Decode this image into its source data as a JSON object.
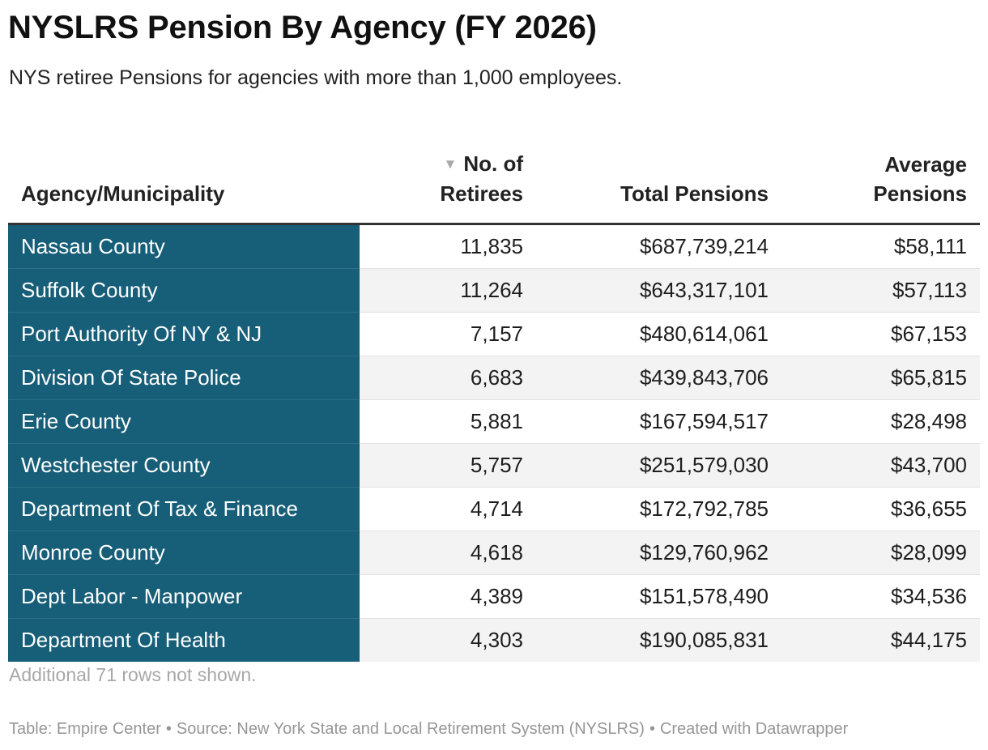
{
  "title": "NYSLRS Pension By Agency (FY 2026)",
  "subtitle": "NYS retiree Pensions for agencies with more than 1,000 employees.",
  "colors": {
    "agency_column_bg": "#175e78",
    "agency_column_text": "#ffffff",
    "stripe": "#f3f3f3",
    "note_text": "#a7a7a7"
  },
  "table": {
    "headers": {
      "agency": "Agency/Municipality",
      "retirees_line1": "No. of",
      "retirees_line2": "Retirees",
      "total": "Total Pensions",
      "average_line1": "Average",
      "average_line2": "Pensions"
    },
    "sort_indicator": {
      "icon": "sort-descending-icon",
      "glyph": "▼",
      "column": "No. of Retirees",
      "direction": "descending"
    },
    "rows": [
      {
        "agency": "Nassau County",
        "retirees": "11,835",
        "total": "$687,739,214",
        "average": "$58,111"
      },
      {
        "agency": "Suffolk County",
        "retirees": "11,264",
        "total": "$643,317,101",
        "average": "$57,113"
      },
      {
        "agency": "Port Authority Of NY & NJ",
        "retirees": "7,157",
        "total": "$480,614,061",
        "average": "$67,153"
      },
      {
        "agency": "Division Of State Police",
        "retirees": "6,683",
        "total": "$439,843,706",
        "average": "$65,815"
      },
      {
        "agency": "Erie County",
        "retirees": "5,881",
        "total": "$167,594,517",
        "average": "$28,498"
      },
      {
        "agency": "Westchester County",
        "retirees": "5,757",
        "total": "$251,579,030",
        "average": "$43,700"
      },
      {
        "agency": "Department Of Tax & Finance",
        "retirees": "4,714",
        "total": "$172,792,785",
        "average": "$36,655"
      },
      {
        "agency": "Monroe County",
        "retirees": "4,618",
        "total": "$129,760,962",
        "average": "$28,099"
      },
      {
        "agency": "Dept Labor - Manpower",
        "retirees": "4,389",
        "total": "$151,578,490",
        "average": "$34,536"
      },
      {
        "agency": "Department Of Health",
        "retirees": "4,303",
        "total": "$190,085,831",
        "average": "$44,175"
      }
    ]
  },
  "more_rows_note": "Additional 71 rows not shown.",
  "footer": {
    "table_credit": "Table: Empire Center",
    "source": "Source: New York State and Local Retirement System (NYSLRS)",
    "created_with": "Created with Datawrapper",
    "separator": "•"
  }
}
